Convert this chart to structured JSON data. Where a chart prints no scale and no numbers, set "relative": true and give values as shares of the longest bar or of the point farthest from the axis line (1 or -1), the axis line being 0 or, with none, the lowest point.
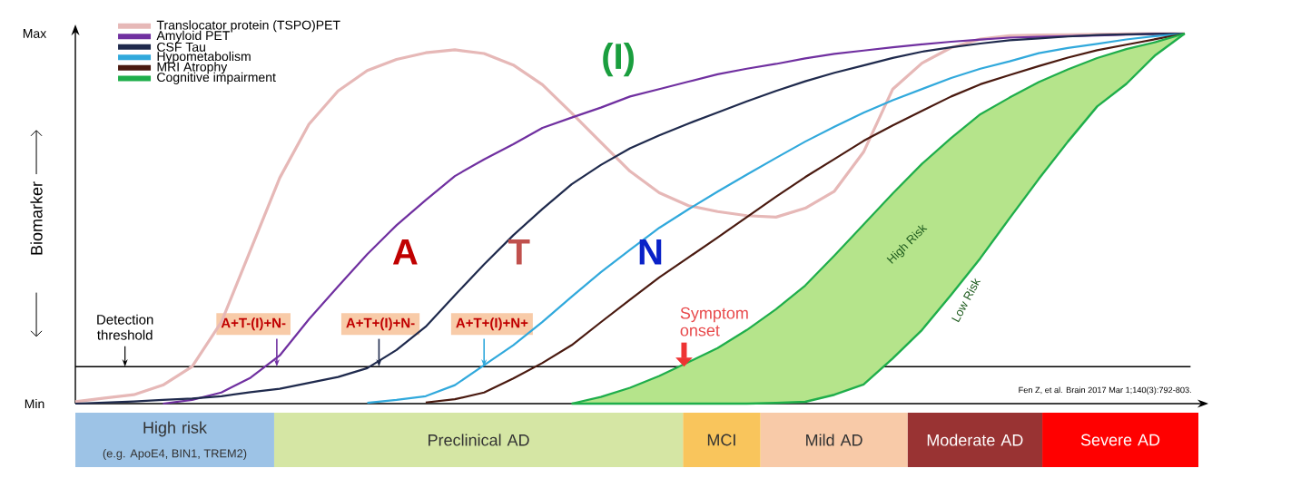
{
  "chart_data": [
    {
      "type": "line",
      "relative": true,
      "ylabel": "Biomarker",
      "legend": "top left",
      "categories": [
        null,
        null,
        null,
        null,
        null,
        null,
        null,
        null,
        null,
        null,
        null,
        null,
        null,
        null,
        null,
        null,
        null,
        null,
        null,
        null,
        null,
        null,
        null,
        null,
        null,
        null,
        null,
        null,
        null,
        null,
        null,
        null,
        null,
        null,
        null,
        null,
        null,
        null,
        null
      ],
      "series": [
        {
          "name": "Translocator protein (TSPO)PET",
          "color": "#e6b8b7",
          "values": [
            0.005,
            0.015,
            0.024,
            0.05,
            0.1,
            0.22,
            0.415,
            0.61,
            0.755,
            0.845,
            0.9,
            0.93,
            0.948,
            0.956,
            0.946,
            0.915,
            0.862,
            0.785,
            0.706,
            0.628,
            0.57,
            0.535,
            0.519,
            0.508,
            0.504,
            0.528,
            0.574,
            0.68,
            0.85,
            0.92,
            0.962,
            0.985,
            0.994,
            0.996,
            0.997,
            0.998,
            0.999,
            1.0,
            1.0
          ]
        },
        {
          "name": "Amyloid PET",
          "color": "#7030a0",
          "values": [
            null,
            null,
            null,
            0,
            0.01,
            0.03,
            0.07,
            0.13,
            0.228,
            0.317,
            0.404,
            0.482,
            0.55,
            0.615,
            0.66,
            0.701,
            0.745,
            0.773,
            0.8,
            0.83,
            0.85,
            0.87,
            0.89,
            0.905,
            0.918,
            0.933,
            0.945,
            0.954,
            0.963,
            0.971,
            0.978,
            0.984,
            0.989,
            0.991,
            0.993,
            0.995,
            0.997,
            0.999,
            1.0
          ]
        },
        {
          "name": "CSF Tau",
          "color": "#1f2a4d",
          "values": [
            0,
            0.003,
            0.006,
            0.01,
            0.014,
            0.02,
            0.031,
            0.04,
            0.056,
            0.072,
            0.096,
            0.145,
            0.208,
            0.293,
            0.376,
            0.455,
            0.526,
            0.593,
            0.645,
            0.69,
            0.725,
            0.757,
            0.787,
            0.817,
            0.845,
            0.871,
            0.894,
            0.914,
            0.934,
            0.951,
            0.963,
            0.973,
            0.982,
            0.987,
            0.992,
            0.996,
            0.998,
            0.999,
            1.0
          ]
        },
        {
          "name": "Hypometabolism",
          "color": "#31a9dc",
          "values": [
            null,
            null,
            null,
            null,
            null,
            null,
            null,
            null,
            null,
            null,
            0.002,
            0.01,
            0.02,
            0.05,
            0.104,
            0.158,
            0.221,
            0.289,
            0.355,
            0.416,
            0.475,
            0.525,
            0.573,
            0.619,
            0.664,
            0.708,
            0.748,
            0.786,
            0.82,
            0.85,
            0.88,
            0.905,
            0.925,
            0.947,
            0.961,
            0.972,
            0.984,
            0.993,
            1.0
          ]
        },
        {
          "name": "MRI Atrophy",
          "color": "#4a1a10",
          "values": [
            null,
            null,
            null,
            null,
            null,
            null,
            null,
            null,
            null,
            null,
            null,
            null,
            0.003,
            0.012,
            0.03,
            0.068,
            0.11,
            0.158,
            0.22,
            0.281,
            0.341,
            0.395,
            0.449,
            0.504,
            0.559,
            0.612,
            0.661,
            0.71,
            0.752,
            0.791,
            0.83,
            0.863,
            0.888,
            0.912,
            0.935,
            0.955,
            0.97,
            0.985,
            1.0
          ]
        },
        {
          "name": "Cognitive impairment",
          "color": "#1fae4b",
          "values": [
            null,
            null,
            null,
            null,
            null,
            null,
            null,
            null,
            null,
            null,
            null,
            null,
            null,
            null,
            null,
            null,
            null,
            0,
            0.018,
            0.043,
            0.075,
            0.112,
            0.15,
            0.199,
            0.255,
            0.319,
            0.4,
            0.484,
            0.568,
            0.648,
            0.718,
            0.782,
            0.827,
            0.869,
            0.903,
            0.934,
            0.958,
            0.977,
            1.0
          ],
          "upper": [
            null,
            null,
            null,
            null,
            null,
            null,
            null,
            null,
            null,
            null,
            null,
            null,
            null,
            null,
            null,
            null,
            null,
            0,
            0.018,
            0.043,
            0.075,
            0.112,
            0.15,
            0.199,
            0.255,
            0.319,
            0.4,
            0.484,
            0.568,
            0.648,
            0.718,
            0.782,
            0.827,
            0.869,
            0.903,
            0.934,
            0.958,
            0.977,
            1.0
          ],
          "lower": [
            null,
            null,
            null,
            null,
            null,
            null,
            null,
            null,
            null,
            null,
            null,
            null,
            null,
            null,
            null,
            null,
            null,
            0,
            0,
            0,
            0,
            0,
            0,
            0,
            0.002,
            0.005,
            0.024,
            0.052,
            0.122,
            0.199,
            0.294,
            0.393,
            0.501,
            0.607,
            0.708,
            0.803,
            0.864,
            0.942,
            1.0
          ]
        }
      ],
      "ref_lines": [
        {
          "axis": "y",
          "value": 0.1,
          "label": "Detection threshold",
          "color": "#000000"
        }
      ],
      "annotations": [
        "Max",
        "Min",
        "(I)",
        "A",
        "T",
        "N",
        "A+T-(I)+N-",
        "A+T+(I)+N-",
        "A+T+(I)+N+",
        "Symptom onset",
        "High Risk",
        "Low Risk",
        "Fen Z, et al. Brain 2017 Mar 1;140(3):792-803."
      ]
    },
    {
      "type": "bar",
      "orientation": "horizontal",
      "stacked": true,
      "relative": true,
      "categories": [
        null
      ],
      "series": [
        {
          "name": "High risk",
          "color": "#9dc3e6",
          "values": [
            0.177
          ]
        },
        {
          "name": "Preclinical AD",
          "color": "#d5e6a4",
          "values": [
            0.364
          ]
        },
        {
          "name": "MCI",
          "color": "#f9c55c",
          "values": [
            0.069
          ]
        },
        {
          "name": "Mild AD",
          "color": "#f8caa8",
          "values": [
            0.131
          ]
        },
        {
          "name": "Moderate AD",
          "color": "#993333",
          "values": [
            0.12
          ]
        },
        {
          "name": "Severe AD",
          "color": "#ff0000",
          "values": [
            0.139
          ]
        }
      ],
      "annotations": [
        "(e.g. ApoE4, BIN1, TREM2)"
      ]
    }
  ]
}
